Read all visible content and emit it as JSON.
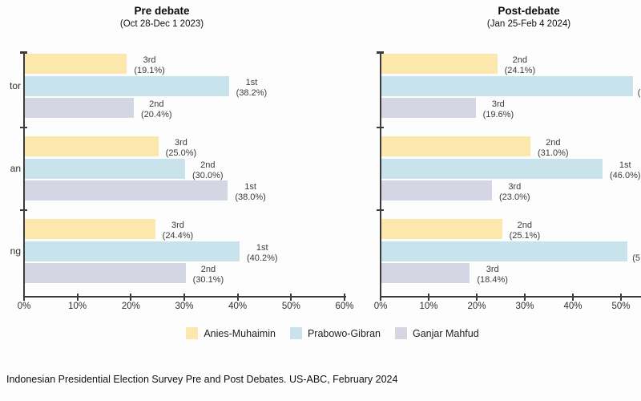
{
  "footer": {
    "text": "Indonesian Presidential Election Survey Pre and Post Debates. US-ABC, February 2024"
  },
  "series_colors": {
    "Anies-Muhaimin": "#FCE8AC",
    "Prabowo-Gibran": "#C8E3EC",
    "Ganjar Mahfud": "#D4D6E3"
  },
  "axis_color": "#3c3c3c",
  "legend": {
    "items": [
      {
        "label": "Anies-Muhaimin",
        "color": "#FCE8AC"
      },
      {
        "label": "Prabowo-Gibran",
        "color": "#C8E3EC"
      },
      {
        "label": "Ganjar Mahfud",
        "color": "#D4D6E3"
      }
    ]
  },
  "chart_data": [
    {
      "type": "bar",
      "orientation": "horizontal",
      "title": "Pre debate",
      "subtitle": "(Oct 28-Dec 1 2023)",
      "xlim": [
        0,
        60
      ],
      "x_ticks": [
        {
          "value": 0,
          "label": "0%"
        },
        {
          "value": 10,
          "label": "10%"
        },
        {
          "value": 20,
          "label": "20%"
        },
        {
          "value": 30,
          "label": "30%"
        },
        {
          "value": 40,
          "label": "40%"
        },
        {
          "value": 50,
          "label": "50%"
        },
        {
          "value": 60,
          "label": "60%"
        }
      ],
      "grid": false,
      "category_fragments": [
        "tor",
        "an",
        "ng"
      ],
      "groups": [
        {
          "bars": [
            {
              "series": "Anies-Muhaimin",
              "value": 19.1,
              "rank": "3rd",
              "pct": "(19.1%)"
            },
            {
              "series": "Prabowo-Gibran",
              "value": 38.2,
              "rank": "1st",
              "pct": "(38.2%)"
            },
            {
              "series": "Ganjar Mahfud",
              "value": 20.4,
              "rank": "2nd",
              "pct": "(20.4%)"
            }
          ]
        },
        {
          "bars": [
            {
              "series": "Anies-Muhaimin",
              "value": 25.0,
              "rank": "3rd",
              "pct": "(25.0%)"
            },
            {
              "series": "Prabowo-Gibran",
              "value": 30.0,
              "rank": "2nd",
              "pct": "(30.0%)"
            },
            {
              "series": "Ganjar Mahfud",
              "value": 38.0,
              "rank": "1st",
              "pct": "(38.0%)"
            }
          ]
        },
        {
          "bars": [
            {
              "series": "Anies-Muhaimin",
              "value": 24.4,
              "rank": "3rd",
              "pct": "(24.4%)"
            },
            {
              "series": "Prabowo-Gibran",
              "value": 40.2,
              "rank": "1st",
              "pct": "(40.2%)"
            },
            {
              "series": "Ganjar Mahfud",
              "value": 30.1,
              "rank": "2nd",
              "pct": "(30.1%)"
            }
          ]
        }
      ]
    },
    {
      "type": "bar",
      "orientation": "horizontal",
      "title": "Post-debate",
      "subtitle": "(Jan 25-Feb 4 2024)",
      "xlim": [
        0,
        60
      ],
      "x_ticks": [
        {
          "value": 0,
          "label": "0%"
        },
        {
          "value": 10,
          "label": "10%"
        },
        {
          "value": 20,
          "label": "20%"
        },
        {
          "value": 30,
          "label": "30%"
        },
        {
          "value": 40,
          "label": "40%"
        },
        {
          "value": 50,
          "label": "50%"
        }
      ],
      "grid": false,
      "category_fragments": [
        "",
        "",
        ""
      ],
      "groups": [
        {
          "bars": [
            {
              "series": "Anies-Muhaimin",
              "value": 24.1,
              "rank": "2nd",
              "pct": "(24.1%)"
            },
            {
              "series": "Prabowo-Gibran",
              "value": 52.3,
              "rank": "",
              "pct": "(",
              "cut": true
            },
            {
              "series": "Ganjar Mahfud",
              "value": 19.6,
              "rank": "3rd",
              "pct": "(19.6%)"
            }
          ]
        },
        {
          "bars": [
            {
              "series": "Anies-Muhaimin",
              "value": 31.0,
              "rank": "2nd",
              "pct": "(31.0%)"
            },
            {
              "series": "Prabowo-Gibran",
              "value": 46.0,
              "rank": "1st",
              "pct": "(46.0%)"
            },
            {
              "series": "Ganjar Mahfud",
              "value": 23.0,
              "rank": "3rd",
              "pct": "(23.0%)"
            }
          ]
        },
        {
          "bars": [
            {
              "series": "Anies-Muhaimin",
              "value": 25.1,
              "rank": "2nd",
              "pct": "(25.1%)"
            },
            {
              "series": "Prabowo-Gibran",
              "value": 51.2,
              "rank": "",
              "pct": "(5",
              "cut": true
            },
            {
              "series": "Ganjar Mahfud",
              "value": 18.4,
              "rank": "3rd",
              "pct": "(18.4%)"
            }
          ]
        }
      ]
    }
  ]
}
